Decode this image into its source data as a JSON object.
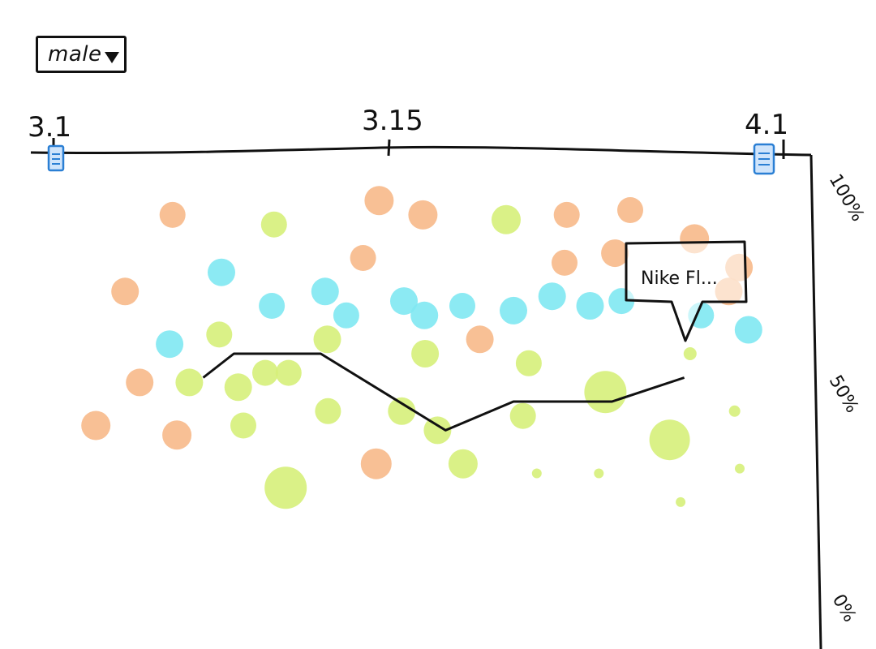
{
  "filter": {
    "selected": "male"
  },
  "chart_data": {
    "type": "scatter",
    "title": "",
    "xlabel": "",
    "ylabel": "",
    "x_ticks": [
      "3.1",
      "3.15",
      "4.1"
    ],
    "y_ticks": [
      "100%",
      "50%",
      "0%"
    ],
    "ylim": [
      0,
      100
    ],
    "range_handles": [
      "3.1",
      "4.1"
    ],
    "tooltip": {
      "label": "Nike Fl..."
    },
    "colors": {
      "orange": "#f7b98a",
      "cyan": "#7fe8f2",
      "green": "#d6f07a",
      "line": "#111111",
      "handle": "#2a7fd4"
    },
    "grid": false,
    "series": [
      {
        "color": "orange",
        "points": [
          {
            "x": 0.163,
            "y": 89,
            "r": 16
          },
          {
            "x": 0.446,
            "y": 92,
            "r": 18
          },
          {
            "x": 0.506,
            "y": 89,
            "r": 18
          },
          {
            "x": 0.424,
            "y": 80,
            "r": 16
          },
          {
            "x": 0.703,
            "y": 89,
            "r": 16
          },
          {
            "x": 0.79,
            "y": 90,
            "r": 16
          },
          {
            "x": 0.769,
            "y": 81,
            "r": 17
          },
          {
            "x": 0.7,
            "y": 79,
            "r": 16
          },
          {
            "x": 0.878,
            "y": 84,
            "r": 18
          },
          {
            "x": 0.939,
            "y": 78,
            "r": 17
          },
          {
            "x": 0.925,
            "y": 73,
            "r": 17
          },
          {
            "x": 0.098,
            "y": 73,
            "r": 17
          },
          {
            "x": 0.584,
            "y": 63,
            "r": 17
          },
          {
            "x": 0.118,
            "y": 54,
            "r": 17
          },
          {
            "x": 0.058,
            "y": 45,
            "r": 18
          },
          {
            "x": 0.169,
            "y": 43,
            "r": 18
          },
          {
            "x": 0.442,
            "y": 37,
            "r": 19
          }
        ]
      },
      {
        "color": "cyan",
        "points": [
          {
            "x": 0.23,
            "y": 77,
            "r": 17
          },
          {
            "x": 0.372,
            "y": 73,
            "r": 17
          },
          {
            "x": 0.299,
            "y": 70,
            "r": 16
          },
          {
            "x": 0.401,
            "y": 68,
            "r": 16
          },
          {
            "x": 0.48,
            "y": 71,
            "r": 17
          },
          {
            "x": 0.508,
            "y": 68,
            "r": 17
          },
          {
            "x": 0.56,
            "y": 70,
            "r": 16
          },
          {
            "x": 0.63,
            "y": 69,
            "r": 17
          },
          {
            "x": 0.683,
            "y": 72,
            "r": 17
          },
          {
            "x": 0.735,
            "y": 70,
            "r": 17
          },
          {
            "x": 0.778,
            "y": 71,
            "r": 16
          },
          {
            "x": 0.887,
            "y": 68,
            "r": 16
          },
          {
            "x": 0.952,
            "y": 65,
            "r": 17
          },
          {
            "x": 0.159,
            "y": 62,
            "r": 17
          }
        ]
      },
      {
        "color": "green",
        "points": [
          {
            "x": 0.302,
            "y": 87,
            "r": 16
          },
          {
            "x": 0.62,
            "y": 88,
            "r": 18
          },
          {
            "x": 0.227,
            "y": 64,
            "r": 16
          },
          {
            "x": 0.375,
            "y": 63,
            "r": 17
          },
          {
            "x": 0.509,
            "y": 60,
            "r": 17
          },
          {
            "x": 0.651,
            "y": 58,
            "r": 16
          },
          {
            "x": 0.186,
            "y": 54,
            "r": 17
          },
          {
            "x": 0.253,
            "y": 53,
            "r": 17
          },
          {
            "x": 0.29,
            "y": 56,
            "r": 16
          },
          {
            "x": 0.322,
            "y": 56,
            "r": 16
          },
          {
            "x": 0.376,
            "y": 48,
            "r": 16
          },
          {
            "x": 0.477,
            "y": 48,
            "r": 17
          },
          {
            "x": 0.526,
            "y": 44,
            "r": 17
          },
          {
            "x": 0.643,
            "y": 47,
            "r": 16
          },
          {
            "x": 0.756,
            "y": 52,
            "r": 26
          },
          {
            "x": 0.872,
            "y": 60,
            "r": 8
          },
          {
            "x": 0.26,
            "y": 45,
            "r": 16
          },
          {
            "x": 0.844,
            "y": 42,
            "r": 25
          },
          {
            "x": 0.933,
            "y": 48,
            "r": 7
          },
          {
            "x": 0.561,
            "y": 37,
            "r": 18
          },
          {
            "x": 0.318,
            "y": 32,
            "r": 26
          },
          {
            "x": 0.662,
            "y": 35,
            "r": 6
          },
          {
            "x": 0.747,
            "y": 35,
            "r": 6
          },
          {
            "x": 0.94,
            "y": 36,
            "r": 6
          },
          {
            "x": 0.859,
            "y": 29,
            "r": 6
          }
        ]
      }
    ],
    "line": [
      {
        "x": 0.205,
        "y": 55
      },
      {
        "x": 0.247,
        "y": 60
      },
      {
        "x": 0.366,
        "y": 60
      },
      {
        "x": 0.537,
        "y": 44
      },
      {
        "x": 0.63,
        "y": 50
      },
      {
        "x": 0.765,
        "y": 50
      },
      {
        "x": 0.864,
        "y": 55
      }
    ]
  }
}
